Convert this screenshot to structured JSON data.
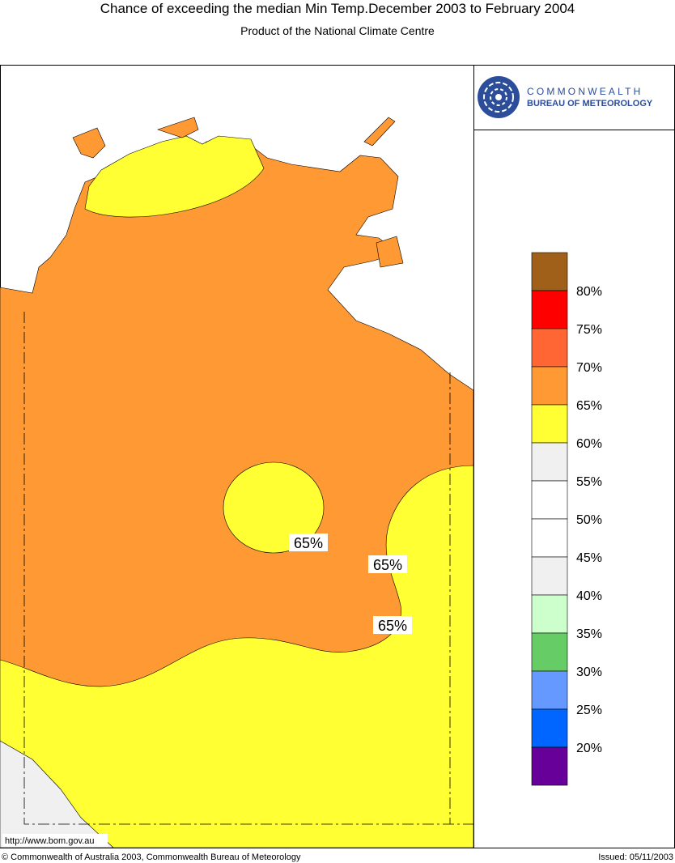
{
  "header": {
    "title": "Chance of exceeding the median Min Temp.December 2003 to February 2004",
    "subtitle": "Product of the National Climate Centre"
  },
  "logo": {
    "line1": "COMMONWEALTH",
    "line2": "BUREAU OF METEOROLOGY"
  },
  "legend": {
    "colors": [
      "#a0601a",
      "#ff0000",
      "#ff6633",
      "#ff9933",
      "#ffff33",
      "#f0f0f0",
      "#ffffff",
      "#ffffff",
      "#f0f0f0",
      "#ccffcc",
      "#66cc66",
      "#6699ff",
      "#0066ff",
      "#660099"
    ],
    "labels": [
      "80%",
      "75%",
      "70%",
      "65%",
      "60%",
      "55%",
      "50%",
      "45%",
      "40%",
      "35%",
      "30%",
      "25%",
      "20%"
    ]
  },
  "map": {
    "contour_labels": [
      "65%",
      "65%",
      "65%"
    ],
    "url": "http://www.bom.gov.au"
  },
  "footer": {
    "copyright": "© Commonwealth of Australia 2003, Commonwealth Bureau of Meteorology",
    "issued": "Issued: 05/11/2003"
  }
}
